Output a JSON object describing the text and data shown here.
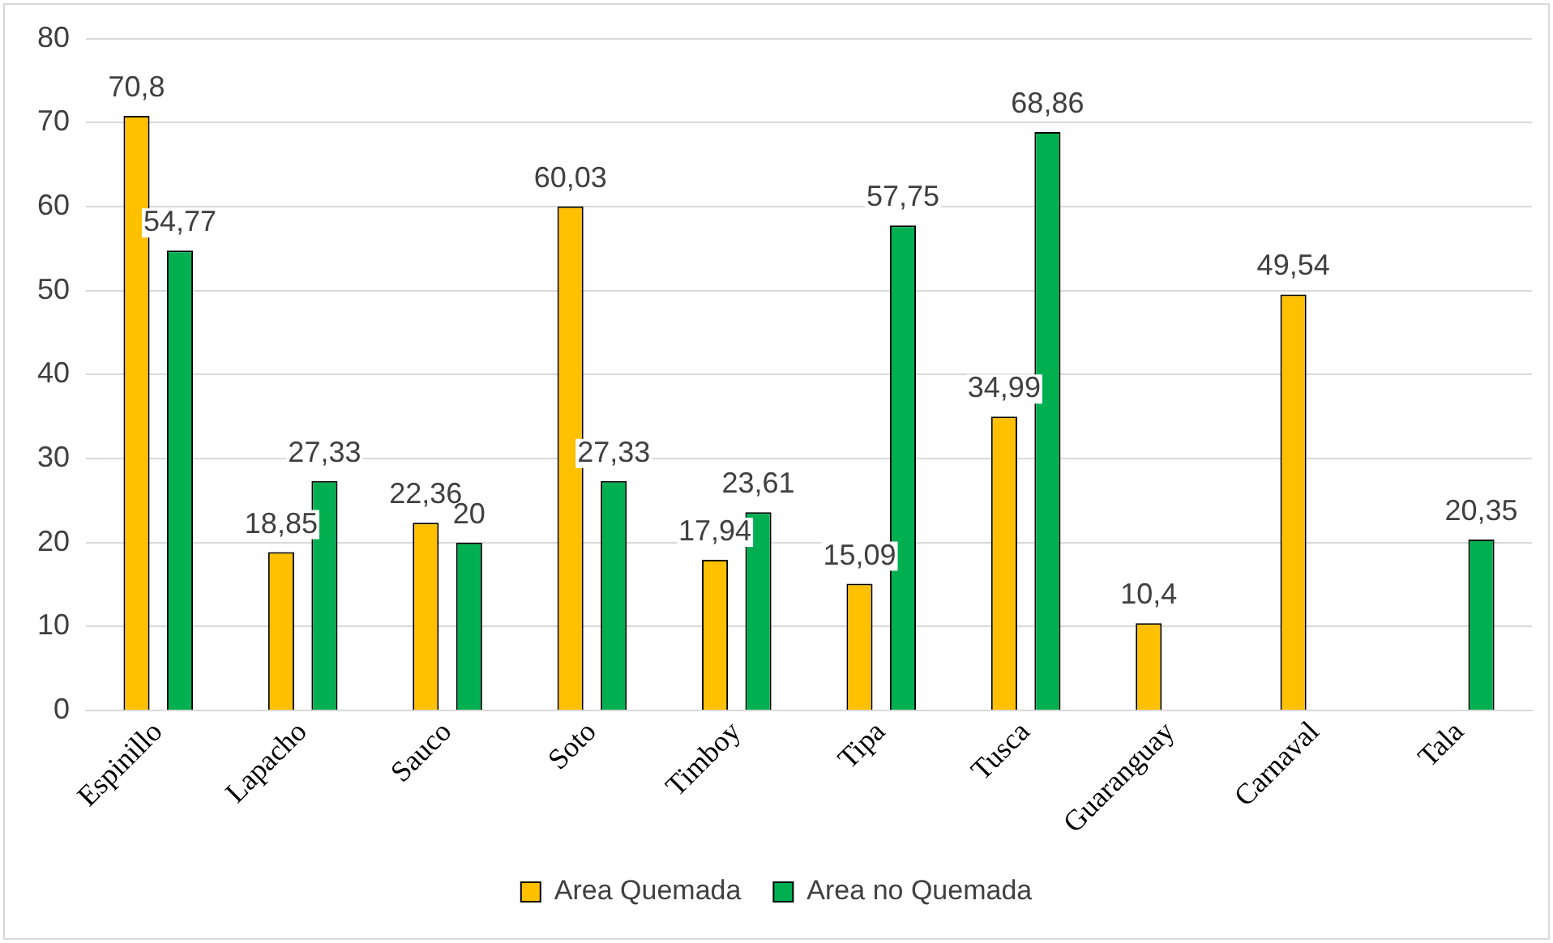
{
  "chart_data": {
    "type": "bar",
    "categories": [
      "Espinillo",
      "Lapacho",
      "Sauco",
      "Soto",
      "Timboy",
      "Tipa",
      "Tusca",
      "Guaranguay",
      "Carnaval",
      "Tala"
    ],
    "series": [
      {
        "name": "Area Quemada",
        "color": "#ffc000",
        "values": [
          70.8,
          18.85,
          22.36,
          60.03,
          17.94,
          15.09,
          34.99,
          10.4,
          49.54,
          null
        ],
        "value_labels": [
          "70,8",
          "18,85",
          "22,36",
          "60,03",
          "17,94",
          "15,09",
          "34,99",
          "10,4",
          "49,54",
          null
        ]
      },
      {
        "name": "Area no Quemada",
        "color": "#00b050",
        "values": [
          54.77,
          27.33,
          20,
          27.33,
          23.61,
          57.75,
          68.86,
          null,
          null,
          20.35
        ],
        "value_labels": [
          "54,77",
          "27,33",
          "20",
          "27,33",
          "23,61",
          "57,75",
          "68,86",
          null,
          null,
          "20,35"
        ]
      }
    ],
    "ylim": [
      0,
      80
    ],
    "yticks": [
      0,
      10,
      20,
      30,
      40,
      50,
      60,
      70,
      80
    ],
    "grid": "y",
    "legend": "bottom"
  }
}
